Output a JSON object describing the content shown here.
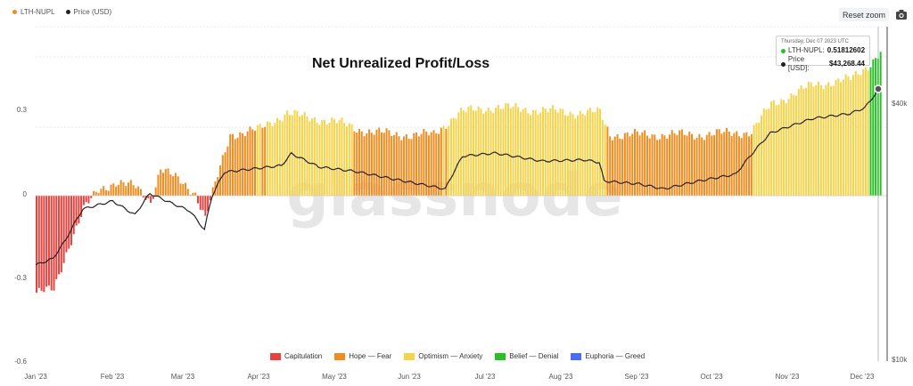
{
  "legend_top": [
    {
      "label": "LTH-NUPL",
      "color": "#f28c1e"
    },
    {
      "label": "Price (USD)",
      "color": "#222222"
    }
  ],
  "toolbar": {
    "reset_zoom": "Reset zoom",
    "camera_icon": "camera-icon"
  },
  "watermark": "glassnode",
  "tooltip": {
    "date": "Thursday, Dec 07 2023 UTC",
    "nupl_label": "LTH-NUPL:",
    "nupl_value": "0.51812602",
    "price_label": "Price [USD]:",
    "price_value": "$43,268.44",
    "nupl_color": "#22c322",
    "price_color": "#222222"
  },
  "chart_data": {
    "type": "bar",
    "title": "Net Unrealized Profit/Loss",
    "x_range": [
      "2023-01-01",
      "2023-12-10"
    ],
    "x_ticks": [
      "Jan '23",
      "Feb '23",
      "Mar '23",
      "Apr '23",
      "May '23",
      "Jun '23",
      "Jul '23",
      "Aug '23",
      "Sep '23",
      "Oct '23",
      "Nov '23",
      "Dec '23"
    ],
    "y_left": {
      "ticks": [
        "0.3",
        "0",
        "-0.3",
        "-0.6"
      ],
      "range": [
        -0.6,
        0.6
      ]
    },
    "y_right": {
      "ticks": [
        "$40k",
        "$10k"
      ],
      "scale": "log"
    },
    "categories_legend": [
      {
        "label": "Capitulation",
        "color": "#e8423f"
      },
      {
        "label": "Hope — Fear",
        "color": "#f28c1e"
      },
      {
        "label": "Optimism — Anxiety",
        "color": "#f5d34a"
      },
      {
        "label": "Belief — Denial",
        "color": "#22c322"
      },
      {
        "label": "Euphoria — Greed",
        "color": "#4a6cf7"
      }
    ],
    "series": [
      {
        "name": "LTH-NUPL",
        "type": "bar",
        "keyframes": [
          {
            "x": "2023-01-01",
            "y": -0.35
          },
          {
            "x": "2023-01-08",
            "y": -0.34
          },
          {
            "x": "2023-01-14",
            "y": -0.18
          },
          {
            "x": "2023-01-20",
            "y": -0.05
          },
          {
            "x": "2023-01-26",
            "y": 0.02
          },
          {
            "x": "2023-02-02",
            "y": 0.05
          },
          {
            "x": "2023-02-10",
            "y": 0.03
          },
          {
            "x": "2023-02-16",
            "y": -0.02
          },
          {
            "x": "2023-02-20",
            "y": 0.1
          },
          {
            "x": "2023-02-28",
            "y": 0.05
          },
          {
            "x": "2023-03-06",
            "y": 0.01
          },
          {
            "x": "2023-03-10",
            "y": -0.08
          },
          {
            "x": "2023-03-16",
            "y": 0.1
          },
          {
            "x": "2023-03-20",
            "y": 0.22
          },
          {
            "x": "2023-04-01",
            "y": 0.24
          },
          {
            "x": "2023-04-12",
            "y": 0.3
          },
          {
            "x": "2023-04-20",
            "y": 0.28
          },
          {
            "x": "2023-05-01",
            "y": 0.27
          },
          {
            "x": "2023-05-10",
            "y": 0.24
          },
          {
            "x": "2023-05-25",
            "y": 0.22
          },
          {
            "x": "2023-06-10",
            "y": 0.22
          },
          {
            "x": "2023-06-20",
            "y": 0.3
          },
          {
            "x": "2023-07-05",
            "y": 0.32
          },
          {
            "x": "2023-07-20",
            "y": 0.31
          },
          {
            "x": "2023-08-05",
            "y": 0.3
          },
          {
            "x": "2023-08-16",
            "y": 0.3
          },
          {
            "x": "2023-08-20",
            "y": 0.22
          },
          {
            "x": "2023-09-10",
            "y": 0.22
          },
          {
            "x": "2023-09-25",
            "y": 0.22
          },
          {
            "x": "2023-10-16",
            "y": 0.23
          },
          {
            "x": "2023-10-24",
            "y": 0.33
          },
          {
            "x": "2023-11-10",
            "y": 0.4
          },
          {
            "x": "2023-11-25",
            "y": 0.42
          },
          {
            "x": "2023-12-02",
            "y": 0.47
          },
          {
            "x": "2023-12-07",
            "y": 0.518
          }
        ]
      },
      {
        "name": "Price (USD)",
        "type": "line",
        "keyframes": [
          {
            "x": "2023-01-01",
            "y": 16600
          },
          {
            "x": "2023-01-08",
            "y": 17200
          },
          {
            "x": "2023-01-13",
            "y": 19000
          },
          {
            "x": "2023-01-20",
            "y": 22500
          },
          {
            "x": "2023-02-01",
            "y": 23500
          },
          {
            "x": "2023-02-10",
            "y": 21800
          },
          {
            "x": "2023-02-16",
            "y": 24500
          },
          {
            "x": "2023-02-25",
            "y": 23200
          },
          {
            "x": "2023-03-04",
            "y": 22300
          },
          {
            "x": "2023-03-10",
            "y": 20100
          },
          {
            "x": "2023-03-13",
            "y": 24100
          },
          {
            "x": "2023-03-18",
            "y": 27500
          },
          {
            "x": "2023-04-10",
            "y": 28500
          },
          {
            "x": "2023-04-14",
            "y": 30400
          },
          {
            "x": "2023-04-25",
            "y": 28300
          },
          {
            "x": "2023-05-10",
            "y": 27600
          },
          {
            "x": "2023-05-25",
            "y": 26500
          },
          {
            "x": "2023-06-15",
            "y": 25100
          },
          {
            "x": "2023-06-22",
            "y": 30000
          },
          {
            "x": "2023-07-05",
            "y": 30500
          },
          {
            "x": "2023-07-24",
            "y": 29200
          },
          {
            "x": "2023-08-10",
            "y": 29400
          },
          {
            "x": "2023-08-16",
            "y": 29000
          },
          {
            "x": "2023-08-18",
            "y": 26200
          },
          {
            "x": "2023-09-01",
            "y": 25800
          },
          {
            "x": "2023-09-11",
            "y": 25100
          },
          {
            "x": "2023-09-25",
            "y": 26200
          },
          {
            "x": "2023-10-10",
            "y": 27200
          },
          {
            "x": "2023-10-24",
            "y": 34000
          },
          {
            "x": "2023-11-10",
            "y": 36800
          },
          {
            "x": "2023-11-25",
            "y": 37800
          },
          {
            "x": "2023-12-01",
            "y": 39000
          },
          {
            "x": "2023-12-07",
            "y": 43268
          }
        ]
      }
    ]
  }
}
